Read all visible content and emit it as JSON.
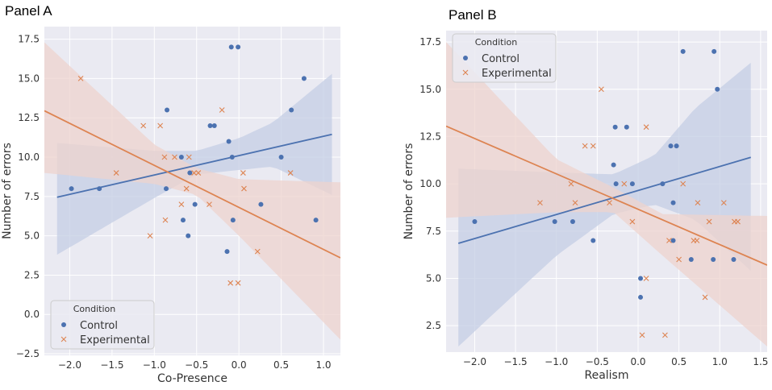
{
  "figure": {
    "panel_a_label": "Panel A",
    "panel_b_label": "Panel B"
  },
  "colors": {
    "control": "#4c72b0",
    "experimental": "#dd8452",
    "plot_bg": "#eaeaf2",
    "grid": "#ffffff",
    "control_band": "#c4cde4",
    "experimental_band": "#eed3ce"
  },
  "chart_data": [
    {
      "type": "scatter",
      "panel": "Panel A",
      "xlabel": "Co-Presence",
      "ylabel": "Number of errors",
      "xlim": [
        -2.3,
        1.2
      ],
      "ylim": [
        -2.6,
        18.3
      ],
      "xticks": [
        -2.0,
        -1.5,
        -1.0,
        -0.5,
        0.0,
        0.5,
        1.0
      ],
      "yticks": [
        -2.5,
        0.0,
        2.5,
        5.0,
        7.5,
        10.0,
        12.5,
        15.0,
        17.5
      ],
      "grid": true,
      "legend": {
        "title": "Condition",
        "position": "lower-left"
      },
      "series": [
        {
          "name": "Control",
          "marker": "circle",
          "points": [
            [
              -1.98,
              8
            ],
            [
              -1.65,
              8
            ],
            [
              -0.85,
              13
            ],
            [
              -0.86,
              8
            ],
            [
              -0.68,
              10
            ],
            [
              -0.66,
              6
            ],
            [
              -0.6,
              5
            ],
            [
              -0.58,
              9
            ],
            [
              -0.52,
              7
            ],
            [
              -0.34,
              12
            ],
            [
              -0.29,
              12
            ],
            [
              -0.14,
              4
            ],
            [
              -0.12,
              11
            ],
            [
              -0.09,
              17
            ],
            [
              -0.08,
              10
            ],
            [
              -0.07,
              6
            ],
            [
              -0.01,
              17
            ],
            [
              0.26,
              7
            ],
            [
              0.5,
              10
            ],
            [
              0.62,
              13
            ],
            [
              0.77,
              15
            ],
            [
              0.91,
              6
            ]
          ],
          "fit": {
            "x0": -2.15,
            "y0": 7.45,
            "x1": 1.1,
            "y1": 11.45
          },
          "band": {
            "lower": [
              [
                -2.15,
                3.8
              ],
              [
                -1.0,
                7.4
              ],
              [
                -0.5,
                8.9
              ],
              [
                -0.15,
                9.1
              ],
              [
                0.4,
                9.4
              ],
              [
                1.1,
                7.6
              ]
            ],
            "upper": [
              [
                -2.15,
                10.9
              ],
              [
                -1.0,
                10.4
              ],
              [
                -0.5,
                10.4
              ],
              [
                0.0,
                11.2
              ],
              [
                0.4,
                12.2
              ],
              [
                1.1,
                15.3
              ]
            ]
          }
        },
        {
          "name": "Experimental",
          "marker": "x",
          "points": [
            [
              -1.87,
              15
            ],
            [
              -1.45,
              9
            ],
            [
              -1.13,
              12
            ],
            [
              -1.05,
              5
            ],
            [
              -0.93,
              12
            ],
            [
              -0.88,
              10
            ],
            [
              -0.87,
              6
            ],
            [
              -0.76,
              10
            ],
            [
              -0.68,
              7
            ],
            [
              -0.62,
              8
            ],
            [
              -0.59,
              10
            ],
            [
              -0.53,
              9
            ],
            [
              -0.48,
              9
            ],
            [
              -0.35,
              7
            ],
            [
              -0.2,
              13
            ],
            [
              -0.1,
              2
            ],
            [
              -0.01,
              2
            ],
            [
              0.05,
              9
            ],
            [
              0.06,
              8
            ],
            [
              0.22,
              4
            ],
            [
              0.61,
              9
            ]
          ],
          "fit": {
            "x0": -2.3,
            "y0": 12.95,
            "x1": 1.2,
            "y1": 3.6
          },
          "band": {
            "lower": [
              [
                -2.3,
                9.0
              ],
              [
                -1.0,
                8.3
              ],
              [
                -0.5,
                7.6
              ],
              [
                0.0,
                5.0
              ],
              [
                1.2,
                -1.6
              ]
            ],
            "upper": [
              [
                -2.3,
                17.3
              ],
              [
                -1.0,
                10.8
              ],
              [
                -0.5,
                9.3
              ],
              [
                0.0,
                8.6
              ],
              [
                1.2,
                8.4
              ]
            ]
          }
        }
      ]
    },
    {
      "type": "scatter",
      "panel": "Panel B",
      "xlabel": "Realism",
      "ylabel": "Number of errors",
      "xlim": [
        -2.35,
        1.58
      ],
      "ylim": [
        1.1,
        18.1
      ],
      "xticks": [
        -2.0,
        -1.5,
        -1.0,
        -0.5,
        0.0,
        0.5,
        1.0,
        1.5
      ],
      "yticks": [
        2.5,
        5.0,
        7.5,
        10.0,
        12.5,
        15.0,
        17.5
      ],
      "grid": true,
      "legend": {
        "title": "Condition",
        "position": "upper-left"
      },
      "series": [
        {
          "name": "Control",
          "marker": "circle",
          "points": [
            [
              -2.0,
              8
            ],
            [
              -1.02,
              8
            ],
            [
              -0.8,
              8
            ],
            [
              -0.55,
              7
            ],
            [
              -0.3,
              11
            ],
            [
              -0.28,
              13
            ],
            [
              -0.27,
              10
            ],
            [
              -0.14,
              13
            ],
            [
              -0.07,
              10
            ],
            [
              0.03,
              5
            ],
            [
              0.03,
              4
            ],
            [
              0.3,
              10
            ],
            [
              0.4,
              12
            ],
            [
              0.43,
              9
            ],
            [
              0.43,
              7
            ],
            [
              0.47,
              12
            ],
            [
              0.55,
              17
            ],
            [
              0.65,
              6
            ],
            [
              0.92,
              6
            ],
            [
              0.93,
              17
            ],
            [
              0.97,
              15
            ],
            [
              1.17,
              6
            ]
          ],
          "fit": {
            "x0": -2.2,
            "y0": 6.85,
            "x1": 1.38,
            "y1": 11.4
          },
          "band": {
            "lower": [
              [
                -2.2,
                1.4
              ],
              [
                -1.0,
                6.2
              ],
              [
                -0.3,
                8.4
              ],
              [
                0.2,
                8.9
              ],
              [
                0.7,
                8.1
              ],
              [
                1.38,
                5.4
              ]
            ],
            "upper": [
              [
                -2.2,
                10.8
              ],
              [
                -1.0,
                10.6
              ],
              [
                -0.3,
                10.5
              ],
              [
                0.2,
                11.5
              ],
              [
                0.7,
                14.0
              ],
              [
                1.38,
                16.4
              ]
            ]
          }
        },
        {
          "name": "Experimental",
          "marker": "x",
          "points": [
            [
              -1.2,
              9
            ],
            [
              -0.82,
              10
            ],
            [
              -0.77,
              9
            ],
            [
              -0.65,
              12
            ],
            [
              -0.55,
              12
            ],
            [
              -0.45,
              15
            ],
            [
              -0.35,
              9
            ],
            [
              -0.17,
              10
            ],
            [
              -0.07,
              8
            ],
            [
              0.05,
              2
            ],
            [
              0.1,
              13
            ],
            [
              0.1,
              5
            ],
            [
              0.33,
              2
            ],
            [
              0.38,
              7
            ],
            [
              0.5,
              6
            ],
            [
              0.55,
              10
            ],
            [
              0.68,
              7
            ],
            [
              0.72,
              7
            ],
            [
              0.73,
              9
            ],
            [
              0.82,
              4
            ],
            [
              0.87,
              8
            ],
            [
              1.05,
              9
            ],
            [
              1.18,
              8
            ],
            [
              1.22,
              8
            ]
          ],
          "fit": {
            "x0": -2.35,
            "y0": 13.05,
            "x1": 1.58,
            "y1": 5.7
          },
          "band": {
            "lower": [
              [
                -2.35,
                8.2
              ],
              [
                -1.0,
                8.5
              ],
              [
                -0.3,
                8.5
              ],
              [
                0.3,
                6.2
              ],
              [
                1.58,
                1.4
              ]
            ],
            "upper": [
              [
                -2.35,
                17.5
              ],
              [
                -1.0,
                11.3
              ],
              [
                -0.3,
                9.8
              ],
              [
                0.3,
                8.4
              ],
              [
                1.58,
                8.3
              ]
            ]
          }
        }
      ]
    }
  ],
  "legend": {
    "title": "Condition",
    "control_label": "Control",
    "experimental_label": "Experimental"
  }
}
